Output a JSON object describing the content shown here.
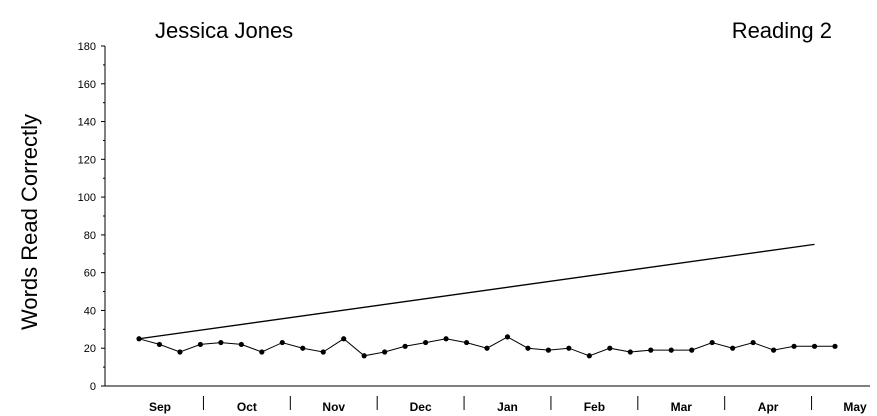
{
  "chart_data": {
    "type": "line",
    "student_name": "Jessica Jones",
    "subject": "Reading 2",
    "ylabel": "Words Read Correctly",
    "xlabel": "",
    "ylim": [
      0,
      180
    ],
    "yticks": [
      0,
      20,
      40,
      60,
      80,
      100,
      120,
      140,
      160,
      180
    ],
    "months": [
      "Sep",
      "Oct",
      "Nov",
      "Dec",
      "Jan",
      "Feb",
      "Mar",
      "Apr",
      "May"
    ],
    "grid": false,
    "aimline": {
      "start": [
        0,
        25
      ],
      "end": [
        33,
        75
      ]
    },
    "series": [
      {
        "x": [
          0,
          1,
          2,
          3,
          4,
          5,
          6,
          7,
          8,
          9,
          10,
          11,
          12,
          13,
          14,
          15,
          16,
          17,
          18,
          19,
          20,
          21,
          22,
          23,
          24,
          25,
          26,
          27,
          28,
          29,
          30,
          31,
          32,
          33,
          34
        ],
        "values": [
          25,
          22,
          18,
          22,
          23,
          22,
          18,
          23,
          20,
          18,
          25,
          16,
          18,
          21,
          23,
          25,
          23,
          20,
          26,
          20,
          19,
          20,
          16,
          20,
          18,
          19,
          19,
          19,
          23,
          20,
          23,
          19,
          21,
          21,
          21
        ]
      }
    ]
  }
}
